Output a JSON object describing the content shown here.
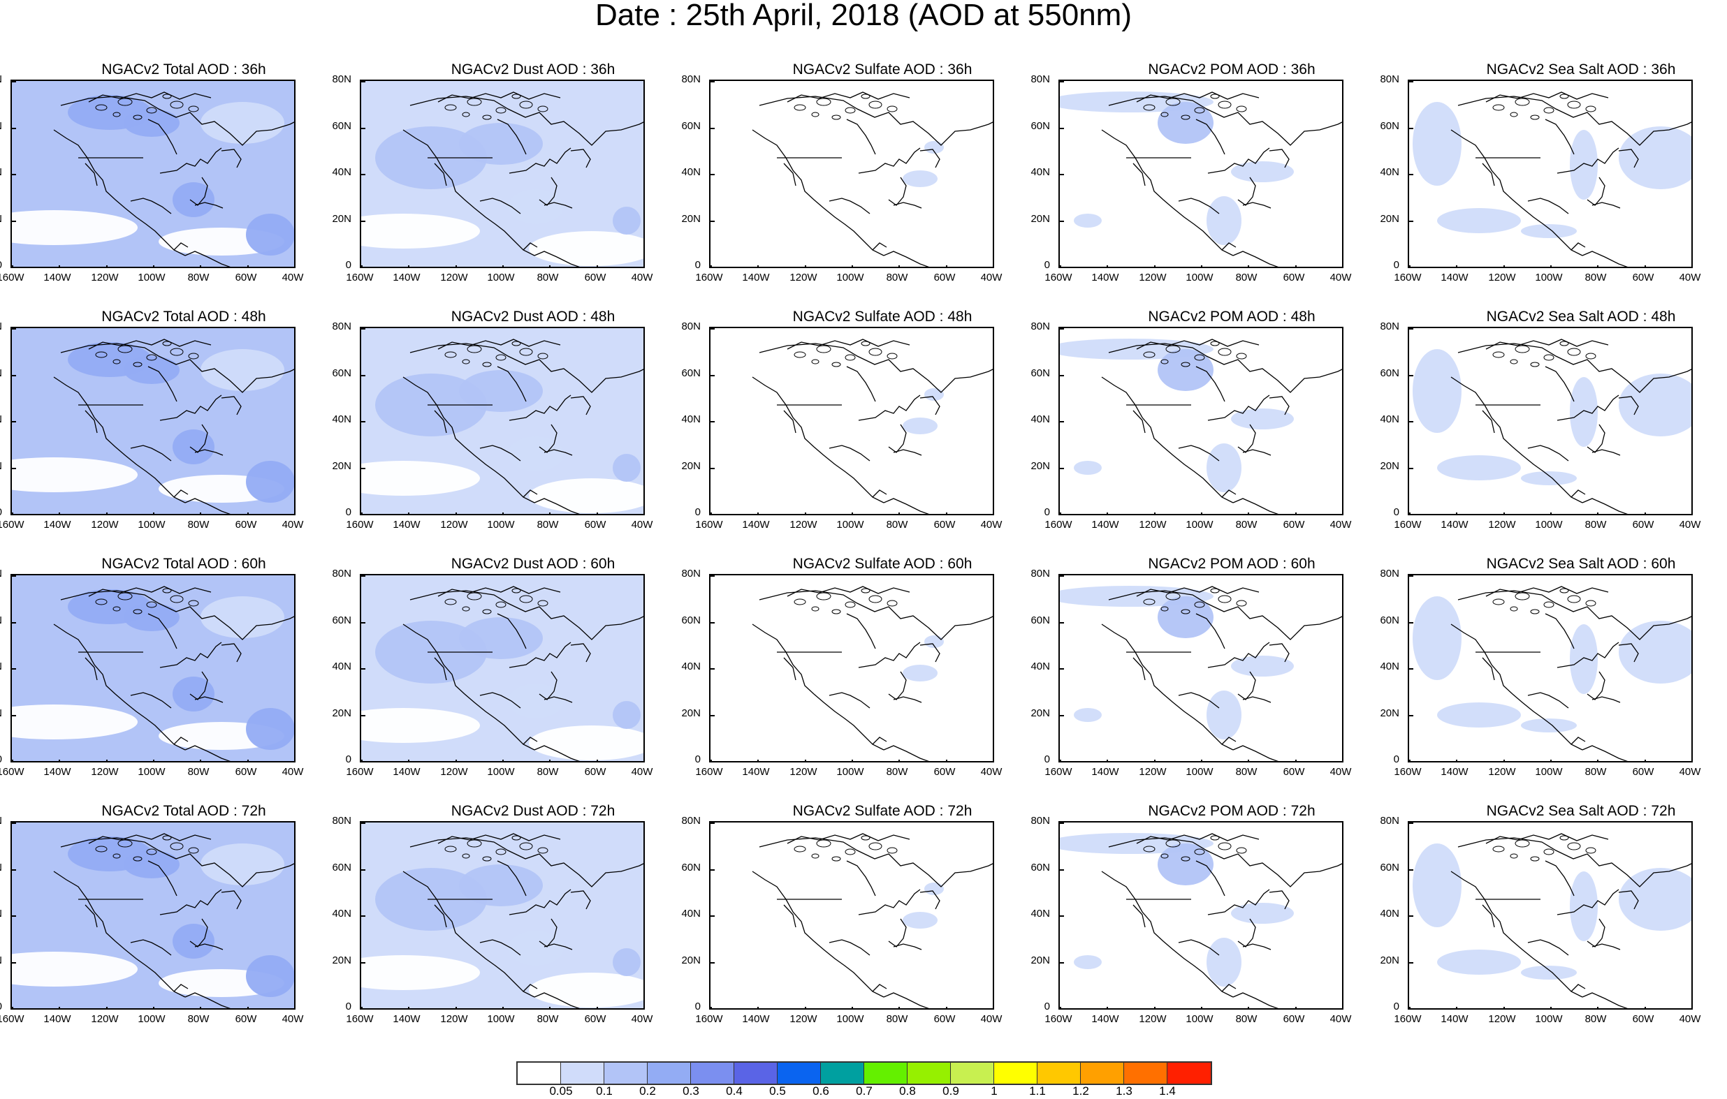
{
  "title": "Date : 25th April, 2018 (AOD at 550nm)",
  "panels": [
    {
      "title": "NGACv2 Total AOD : 36h",
      "species": "total"
    },
    {
      "title": "NGACv2 Dust AOD : 36h",
      "species": "dust"
    },
    {
      "title": "NGACv2 Sulfate AOD : 36h",
      "species": "sulfate"
    },
    {
      "title": "NGACv2 POM AOD : 36h",
      "species": "pom"
    },
    {
      "title": "NGACv2 Sea Salt AOD : 36h",
      "species": "seasalt"
    },
    {
      "title": "NGACv2 Total AOD : 48h",
      "species": "total"
    },
    {
      "title": "NGACv2 Dust AOD : 48h",
      "species": "dust"
    },
    {
      "title": "NGACv2 Sulfate AOD : 48h",
      "species": "sulfate"
    },
    {
      "title": "NGACv2 POM AOD : 48h",
      "species": "pom"
    },
    {
      "title": "NGACv2 Sea Salt AOD : 48h",
      "species": "seasalt"
    },
    {
      "title": "NGACv2 Total AOD : 60h",
      "species": "total"
    },
    {
      "title": "NGACv2 Dust AOD : 60h",
      "species": "dust"
    },
    {
      "title": "NGACv2 Sulfate AOD : 60h",
      "species": "sulfate"
    },
    {
      "title": "NGACv2 POM AOD : 60h",
      "species": "pom"
    },
    {
      "title": "NGACv2 Sea Salt AOD : 60h",
      "species": "seasalt"
    },
    {
      "title": "NGACv2 Total AOD : 72h",
      "species": "total"
    },
    {
      "title": "NGACv2 Dust AOD : 72h",
      "species": "dust"
    },
    {
      "title": "NGACv2 Sulfate AOD : 72h",
      "species": "sulfate"
    },
    {
      "title": "NGACv2 POM AOD : 72h",
      "species": "pom"
    },
    {
      "title": "NGACv2 Sea Salt  AOD : 72h",
      "species": "seasalt"
    }
  ],
  "lat_labels": [
    "80N",
    "60N",
    "40N",
    "20N",
    "0"
  ],
  "lon_labels": [
    "160W",
    "140W",
    "120W",
    "100W",
    "80W",
    "60W",
    "40W"
  ],
  "colorbar": {
    "colors": [
      "#ffffff",
      "#d0dcfa",
      "#b2c4f7",
      "#93acf4",
      "#7b8ff0",
      "#5a64e6",
      "#0a64f0",
      "#00a0a0",
      "#64f000",
      "#96f000",
      "#c8f050",
      "#ffff00",
      "#ffc800",
      "#ffa000",
      "#ff7000",
      "#ff2000"
    ],
    "labels": [
      "0.05",
      "0.1",
      "0.2",
      "0.3",
      "0.4",
      "0.5",
      "0.6",
      "0.7",
      "0.8",
      "0.9",
      "1",
      "1.1",
      "1.2",
      "1.3",
      "1.4"
    ]
  }
}
